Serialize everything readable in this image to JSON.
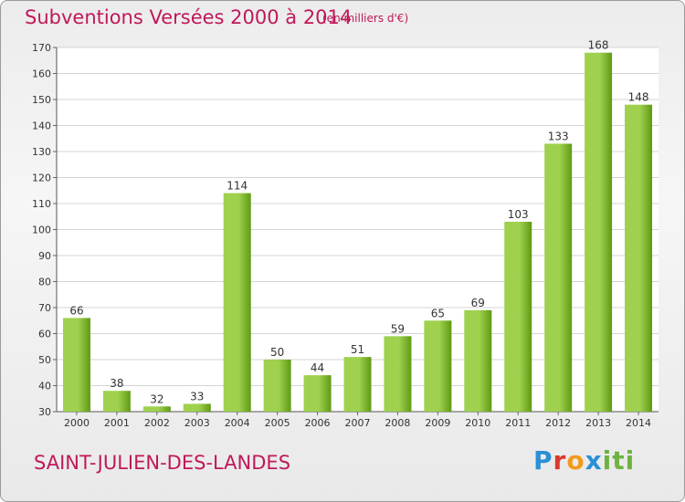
{
  "header": {
    "title": "Subventions Versées 2000 à 2014",
    "subtitle": "(en milliers d'€)"
  },
  "footer": {
    "place": "SAINT-JULIEN-DES-LANDES",
    "logo": "Proxiti",
    "logo_letters": [
      "P",
      "r",
      "o",
      "x",
      "i",
      "ti"
    ]
  },
  "colors": {
    "title": "#c0185a",
    "bar_light": "#9fd14e",
    "bar_dark": "#5f9a14"
  },
  "chart_data": {
    "type": "bar",
    "title": "Subventions Versées 2000 à 2014",
    "categories": [
      "2000",
      "2001",
      "2002",
      "2003",
      "2004",
      "2005",
      "2006",
      "2007",
      "2008",
      "2009",
      "2010",
      "2011",
      "2012",
      "2013",
      "2014"
    ],
    "values": [
      66,
      38,
      32,
      33,
      114,
      50,
      44,
      51,
      59,
      65,
      69,
      103,
      133,
      168,
      148
    ],
    "ylim": [
      30,
      170
    ],
    "yticks": [
      30,
      40,
      50,
      60,
      70,
      80,
      90,
      100,
      110,
      120,
      130,
      140,
      150,
      160,
      170
    ],
    "grid": true,
    "xlabel": "",
    "ylabel": ""
  }
}
